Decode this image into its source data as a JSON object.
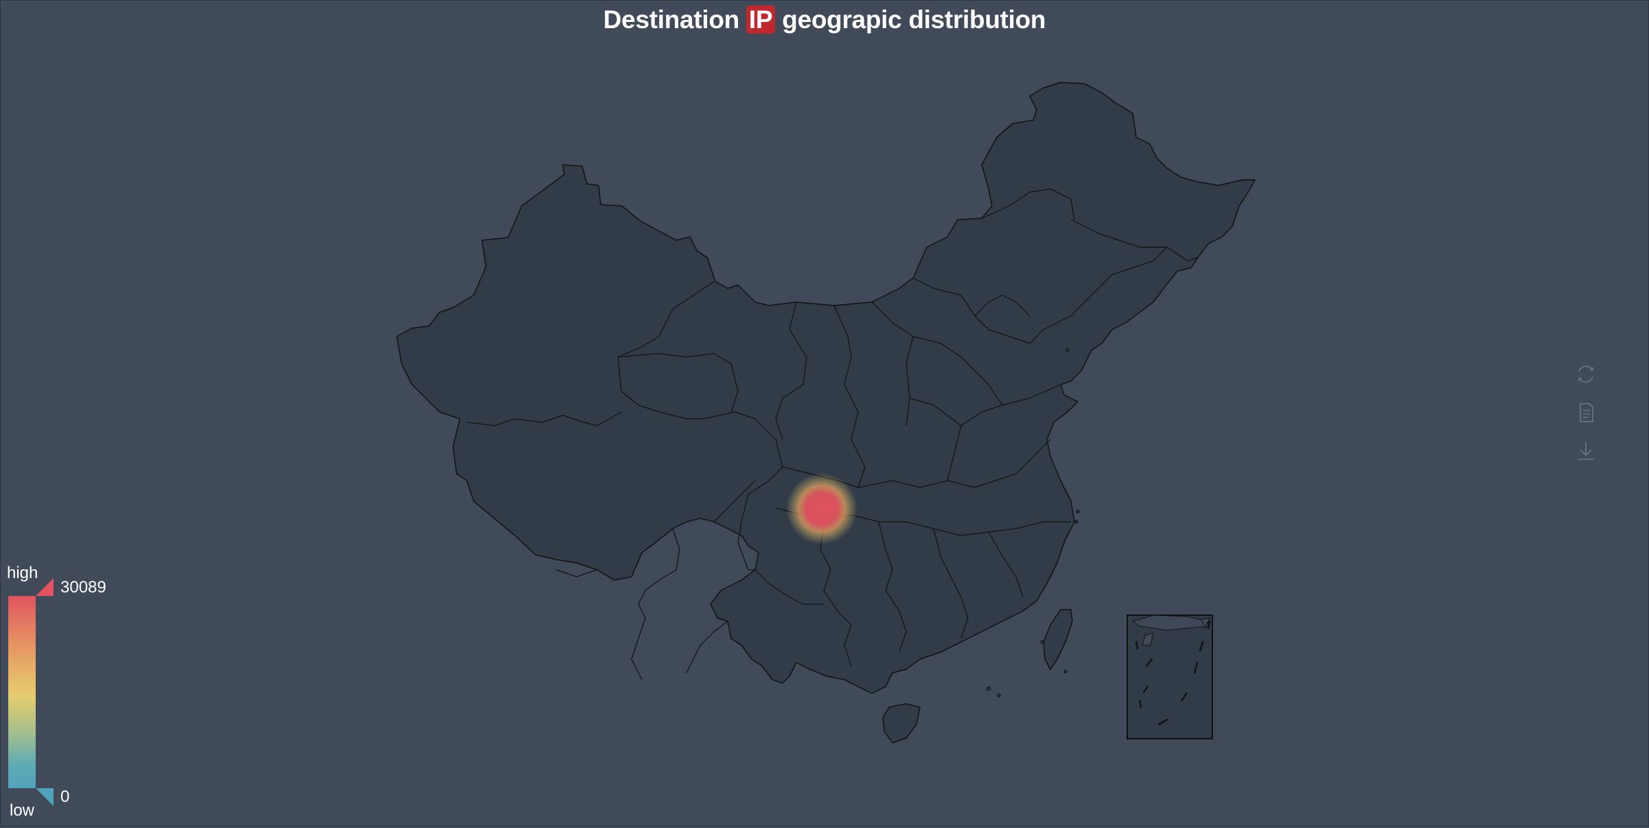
{
  "title": {
    "prefix": "Destination",
    "highlight": "IP",
    "suffix": "geograpic distribution"
  },
  "visual_map": {
    "max_value": "30089",
    "min_value": "0",
    "high_label": "high",
    "low_label": "low",
    "colors": [
      "#e0535f",
      "#e69a64",
      "#e6cd6f",
      "#a8bf8a",
      "#50a3ba"
    ]
  },
  "map": {
    "region": "China",
    "land_color": "#323c48",
    "border_color": "#111111",
    "background_color": "#404a59",
    "hotspots": [
      {
        "name": "Sichuan",
        "value": 30089,
        "color": "#e0535f"
      }
    ]
  },
  "toolbox": {
    "items": [
      {
        "icon": "refresh-icon",
        "label": "Restore"
      },
      {
        "icon": "data-view-icon",
        "label": "Data view"
      },
      {
        "icon": "download-icon",
        "label": "Save as image"
      }
    ]
  }
}
